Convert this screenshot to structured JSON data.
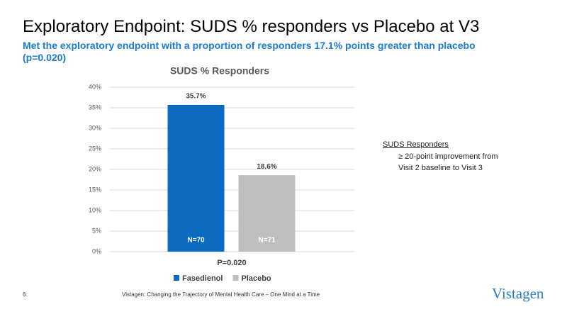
{
  "slide": {
    "title": "Exploratory Endpoint:  SUDS % responders vs Placebo at V3",
    "subtitle": "Met the exploratory endpoint with a proportion of responders 17.1% points greater than placebo (p=0.020)",
    "page_number": "6",
    "footer": "Vistagen: Changing the Trajectory of Mental Health Care – One Mind at a Time",
    "logo": "Vistagen"
  },
  "note": {
    "heading": "SUDS Responders",
    "lines": [
      "≥ 20-point improvement from",
      "Visit 2 baseline to Visit 3"
    ]
  },
  "chart_data": {
    "type": "bar",
    "title": "SUDS % Responders",
    "xlabel": "P=0.020",
    "categories": [
      null
    ],
    "series": [
      {
        "name": "Fasedienol",
        "color": "#0b6bc0",
        "values": [
          35.7
        ],
        "value_labels": [
          "35.7%"
        ],
        "n_labels": [
          "N=70"
        ]
      },
      {
        "name": "Placebo",
        "color": "#bfbfbf",
        "values": [
          18.6
        ],
        "value_labels": [
          "18.6%"
        ],
        "n_labels": [
          "N=71"
        ]
      }
    ],
    "ylim": [
      0,
      40
    ],
    "yticks": [
      {
        "value": 0,
        "label": "0%"
      },
      {
        "value": 5,
        "label": "5%"
      },
      {
        "value": 10,
        "label": "10%"
      },
      {
        "value": 15,
        "label": "15%"
      },
      {
        "value": 20,
        "label": "20%"
      },
      {
        "value": 25,
        "label": "25%"
      },
      {
        "value": 30,
        "label": "30%"
      },
      {
        "value": 35,
        "label": "35%"
      },
      {
        "value": 40,
        "label": "40%"
      }
    ],
    "grid": true
  }
}
